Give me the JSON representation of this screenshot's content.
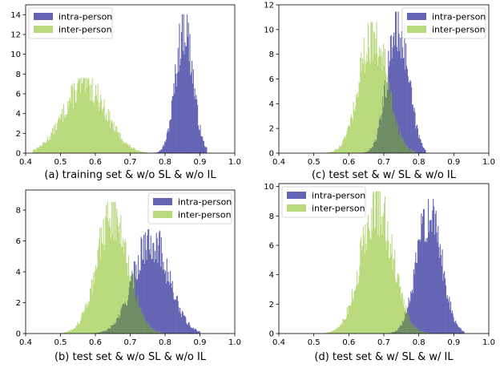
{
  "colors": {
    "intra": "#6464b4",
    "inter": "#b9da7c",
    "overlap": "#6e8c64",
    "legend_border": "#cccccc",
    "axis": "#000000"
  },
  "chart_data": [
    {
      "type": "histogram",
      "caption": "(a) training set & w/o SL & w/o IL",
      "xlim": [
        0.4,
        1.0
      ],
      "ylim": [
        0,
        15
      ],
      "xticks": [
        "0.4",
        "0.5",
        "0.6",
        "0.7",
        "0.8",
        "0.9",
        "1.0"
      ],
      "yticks": [
        "0",
        "2",
        "4",
        "6",
        "8",
        "10",
        "12",
        "14"
      ],
      "legend_position": "top-left",
      "series": [
        {
          "name": "intra-person",
          "color_key": "intra",
          "mean": 0.855,
          "sd": 0.025,
          "peak": 13.5,
          "range": [
            0.72,
            0.92
          ]
        },
        {
          "name": "inter-person",
          "color_key": "inter",
          "mean": 0.57,
          "sd": 0.06,
          "peak": 7.3,
          "range": [
            0.42,
            0.75
          ]
        }
      ]
    },
    {
      "type": "histogram",
      "caption": "(c) test set & w/ SL & w/o IL",
      "xlim": [
        0.4,
        1.0
      ],
      "ylim": [
        0,
        12
      ],
      "xticks": [
        "0.4",
        "0.5",
        "0.6",
        "0.7",
        "0.8",
        "0.9",
        "1.0"
      ],
      "yticks": [
        "0",
        "2",
        "4",
        "6",
        "8",
        "10",
        "12"
      ],
      "legend_position": "top-right",
      "series": [
        {
          "name": "intra-person",
          "color_key": "intra",
          "mean": 0.74,
          "sd": 0.03,
          "peak": 11.0,
          "range": [
            0.62,
            0.82
          ]
        },
        {
          "name": "inter-person",
          "color_key": "inter",
          "mean": 0.67,
          "sd": 0.04,
          "peak": 10.2,
          "range": [
            0.52,
            0.79
          ]
        }
      ]
    },
    {
      "type": "histogram",
      "caption": "(b) test set & w/o SL & w/o IL",
      "xlim": [
        0.4,
        1.0
      ],
      "ylim": [
        0,
        9.3
      ],
      "xticks": [
        "0.4",
        "0.5",
        "0.6",
        "0.7",
        "0.8",
        "0.9",
        "1.0"
      ],
      "yticks": [
        "0",
        "2",
        "4",
        "6",
        "8"
      ],
      "legend_position": "top-right",
      "series": [
        {
          "name": "intra-person",
          "color_key": "intra",
          "mean": 0.76,
          "sd": 0.05,
          "peak": 6.5,
          "range": [
            0.6,
            0.9
          ]
        },
        {
          "name": "inter-person",
          "color_key": "inter",
          "mean": 0.65,
          "sd": 0.045,
          "peak": 8.2,
          "range": [
            0.5,
            0.8
          ]
        }
      ]
    },
    {
      "type": "histogram",
      "caption": "(d) test set & w/ SL & w/ IL",
      "xlim": [
        0.4,
        1.0
      ],
      "ylim": [
        0,
        10.2
      ],
      "xticks": [
        "0.4",
        "0.5",
        "0.6",
        "0.7",
        "0.8",
        "0.9",
        "1.0"
      ],
      "yticks": [
        "0",
        "2",
        "4",
        "6",
        "8",
        "10"
      ],
      "legend_position": "top-left",
      "series": [
        {
          "name": "intra-person",
          "color_key": "intra",
          "mean": 0.83,
          "sd": 0.035,
          "peak": 8.8,
          "range": [
            0.7,
            0.93
          ]
        },
        {
          "name": "inter-person",
          "color_key": "inter",
          "mean": 0.68,
          "sd": 0.045,
          "peak": 9.3,
          "range": [
            0.5,
            0.85
          ]
        }
      ]
    }
  ]
}
